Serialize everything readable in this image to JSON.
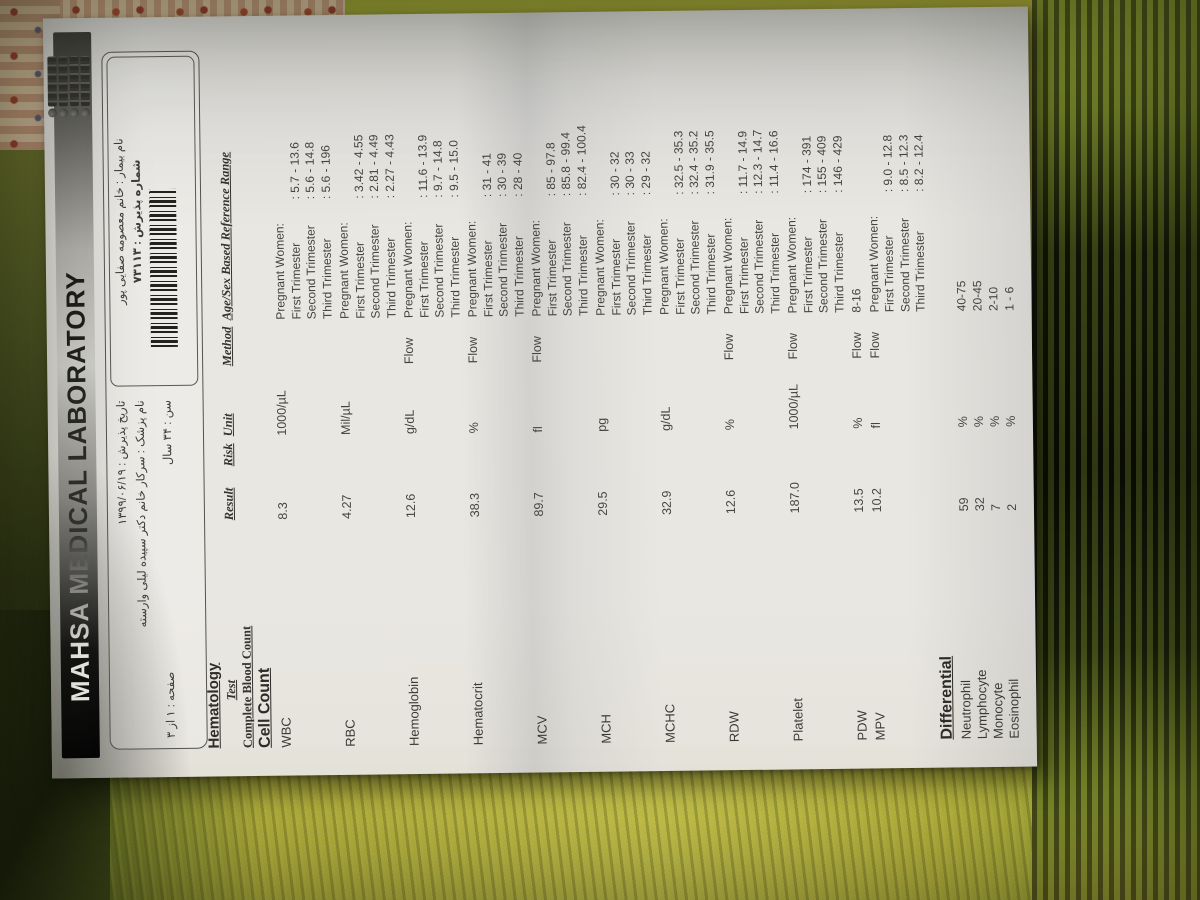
{
  "paper": {
    "edge_code": "13990619"
  },
  "header": {
    "title": "MAHSA MEDICAL LABORATORY",
    "logo": "accreditation-stamps"
  },
  "patient": {
    "name": "نام بیمار : خانم معصومه صفایی پور",
    "admission_no": "شماره پذیرش : ۷۳۱۱۳",
    "admission_date": "تاریخ پذیرش : ۱۳۹۹/۰۶/۱۹",
    "doctor": "نام پزشک : سرکار خانم دکتر سپیده لیلی وارسته",
    "age": "سن : ۳۴ سال",
    "page": "صفحه : ۱ از ۳"
  },
  "report": {
    "section": "Hematology",
    "headers": {
      "test": "Test",
      "result": "Result",
      "risk": "Risk",
      "unit": "Unit",
      "method": "Method",
      "reference": "Age/Sex Based Reference Range"
    },
    "subsection": "Complete Blood Count",
    "cell_count_label": "Cell Count",
    "differential_label": "Differential",
    "rows": [
      {
        "name": "WBC",
        "result": "8.3",
        "unit": "1000/µL",
        "method": "",
        "ref": [
          [
            "Pregnant Women:",
            ""
          ],
          [
            "First Trimester",
            "5.7 - 13.6"
          ],
          [
            "Second Trimester",
            "5.6 - 14.8"
          ],
          [
            "Third Trimester",
            "5.6 - 196"
          ]
        ]
      },
      {
        "name": "RBC",
        "result": "4.27",
        "unit": "Mil/µL",
        "method": "",
        "ref": [
          [
            "Pregnant Women:",
            ""
          ],
          [
            "First Trimester",
            "3.42 - 4.55"
          ],
          [
            "Second Trimester",
            "2.81 - 4.49"
          ],
          [
            "Third Trimester",
            "2.27 - 4.43"
          ]
        ]
      },
      {
        "name": "Hemoglobin",
        "result": "12.6",
        "unit": "g/dL",
        "method": "Flow",
        "ref": [
          [
            "Pregnant Women:",
            ""
          ],
          [
            "First Trimester",
            "11.6 - 13.9"
          ],
          [
            "Second Trimester",
            "9.7 - 14.8"
          ],
          [
            "Third Trimester",
            "9.5 - 15.0"
          ]
        ]
      },
      {
        "name": "Hematocrit",
        "result": "38.3",
        "unit": "%",
        "method": "Flow",
        "ref": [
          [
            "Pregnant Women:",
            ""
          ],
          [
            "First Trimester",
            "31 - 41"
          ],
          [
            "Second Trimester",
            "30 - 39"
          ],
          [
            "Third Trimester",
            "28 - 40"
          ]
        ]
      },
      {
        "name": "MCV",
        "result": "89.7",
        "unit": "fl",
        "method": "Flow",
        "ref": [
          [
            "Pregnant Women:",
            ""
          ],
          [
            "First Trimester",
            "85 - 97.8"
          ],
          [
            "Second Trimester",
            "85.8 - 99.4"
          ],
          [
            "Third Trimester",
            "82.4 - 100.4"
          ]
        ]
      },
      {
        "name": "MCH",
        "result": "29.5",
        "unit": "pg",
        "method": "",
        "ref": [
          [
            "Pregnant Women:",
            ""
          ],
          [
            "First Trimester",
            "30 - 32"
          ],
          [
            "Second Trimester",
            "30 - 33"
          ],
          [
            "Third Trimester",
            "29 - 32"
          ]
        ]
      },
      {
        "name": "MCHC",
        "result": "32.9",
        "unit": "g/dL",
        "method": "",
        "ref": [
          [
            "Pregnant Women:",
            ""
          ],
          [
            "First Trimester",
            "32.5 - 35.3"
          ],
          [
            "Second Trimester",
            "32.4 - 35.2"
          ],
          [
            "Third Trimester",
            "31.9 - 35.5"
          ]
        ]
      },
      {
        "name": "RDW",
        "result": "12.6",
        "unit": "%",
        "method": "Flow",
        "ref": [
          [
            "Pregnant Women:",
            ""
          ],
          [
            "First Trimester",
            "11.7 - 14.9"
          ],
          [
            "Second Trimester",
            "12.3 - 14.7"
          ],
          [
            "Third Trimester",
            "11.4 - 16.6"
          ]
        ]
      },
      {
        "name": "Platelet",
        "result": "187.0",
        "unit": "1000/µL",
        "method": "Flow",
        "ref": [
          [
            "Pregnant Women:",
            ""
          ],
          [
            "First Trimester",
            "174 - 391"
          ],
          [
            "Second Trimester",
            "155 - 409"
          ],
          [
            "Third Trimester",
            "146 - 429"
          ]
        ]
      },
      {
        "name": "PDW",
        "result": "13.5",
        "unit": "%",
        "method": "Flow",
        "ref": [
          [
            "8-16",
            ""
          ]
        ]
      },
      {
        "name": "MPV",
        "result": "10.2",
        "unit": "fl",
        "method": "Flow",
        "ref": [
          [
            "Pregnant Women:",
            ""
          ],
          [
            "First Trimester",
            "9.0 - 12.8"
          ],
          [
            "Second Trimester",
            "8.5 - 12.3"
          ],
          [
            "Third Trimester",
            "8.2 - 12.4"
          ]
        ]
      }
    ],
    "differential_rows": [
      {
        "name": "Neutrophil",
        "result": "59",
        "unit": "%",
        "method": "",
        "ref": [
          [
            "40-75",
            ""
          ]
        ]
      },
      {
        "name": "Lymphocyte",
        "result": "32",
        "unit": "%",
        "method": "",
        "ref": [
          [
            "20-45",
            ""
          ]
        ]
      },
      {
        "name": "Monocyte",
        "result": "7",
        "unit": "%",
        "method": "",
        "ref": [
          [
            "2-10",
            ""
          ]
        ]
      },
      {
        "name": "Eosinophil",
        "result": "2",
        "unit": "%",
        "method": "",
        "ref": [
          [
            "1 - 6",
            ""
          ]
        ]
      }
    ]
  }
}
